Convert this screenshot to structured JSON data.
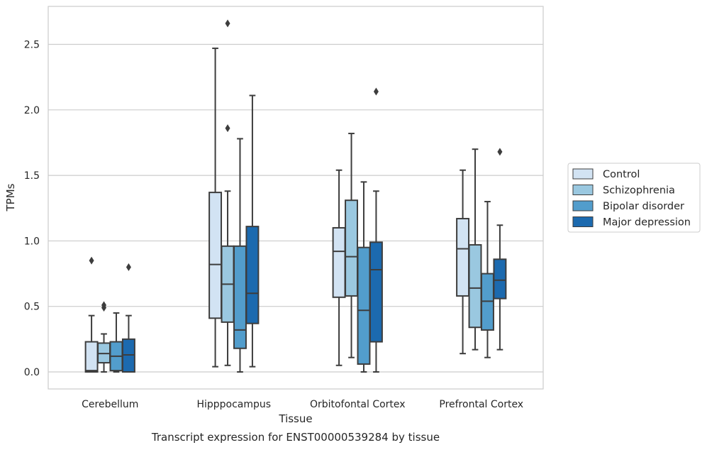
{
  "chart_data": {
    "type": "box",
    "title": "",
    "caption": "Transcript expression for ENST00000539284 by tissue",
    "xlabel": "Tissue",
    "ylabel": "TPMs",
    "ylim": [
      -0.13,
      2.79
    ],
    "yticks": [
      0.0,
      0.5,
      1.0,
      1.5,
      2.0,
      2.5
    ],
    "ytick_labels": [
      "0.0",
      "0.5",
      "1.0",
      "1.5",
      "2.0",
      "2.5"
    ],
    "grid": "horizontal",
    "legend_position": "right",
    "categories": [
      "Cerebellum",
      "Hipppocampus",
      "Orbitofontal Cortex",
      "Prefrontal Cortex"
    ],
    "series": [
      {
        "name": "Control",
        "color": "#d2e3f3",
        "boxes": [
          {
            "whisker_low": 0.0,
            "q1": 0.0,
            "median": 0.01,
            "q3": 0.23,
            "whisker_high": 0.43,
            "outliers": [
              0.85
            ]
          },
          {
            "whisker_low": 0.04,
            "q1": 0.41,
            "median": 0.82,
            "q3": 1.37,
            "whisker_high": 2.47,
            "outliers": []
          },
          {
            "whisker_low": 0.05,
            "q1": 0.57,
            "median": 0.92,
            "q3": 1.1,
            "whisker_high": 1.54,
            "outliers": []
          },
          {
            "whisker_low": 0.14,
            "q1": 0.58,
            "median": 0.94,
            "q3": 1.17,
            "whisker_high": 1.54,
            "outliers": []
          }
        ]
      },
      {
        "name": "Schizophrenia",
        "color": "#9ac8e0",
        "boxes": [
          {
            "whisker_low": 0.0,
            "q1": 0.07,
            "median": 0.14,
            "q3": 0.22,
            "whisker_high": 0.29,
            "outliers": [
              0.49,
              0.51
            ]
          },
          {
            "whisker_low": 0.05,
            "q1": 0.38,
            "median": 0.67,
            "q3": 0.96,
            "whisker_high": 1.38,
            "outliers": [
              1.86,
              2.66
            ]
          },
          {
            "whisker_low": 0.11,
            "q1": 0.58,
            "median": 0.88,
            "q3": 1.31,
            "whisker_high": 1.82,
            "outliers": []
          },
          {
            "whisker_low": 0.17,
            "q1": 0.34,
            "median": 0.64,
            "q3": 0.97,
            "whisker_high": 1.7,
            "outliers": []
          }
        ]
      },
      {
        "name": "Bipolar disorder",
        "color": "#529dcc",
        "boxes": [
          {
            "whisker_low": 0.0,
            "q1": 0.01,
            "median": 0.12,
            "q3": 0.23,
            "whisker_high": 0.45,
            "outliers": []
          },
          {
            "whisker_low": 0.0,
            "q1": 0.18,
            "median": 0.32,
            "q3": 0.96,
            "whisker_high": 1.78,
            "outliers": []
          },
          {
            "whisker_low": 0.0,
            "q1": 0.06,
            "median": 0.47,
            "q3": 0.95,
            "whisker_high": 1.45,
            "outliers": []
          },
          {
            "whisker_low": 0.11,
            "q1": 0.32,
            "median": 0.54,
            "q3": 0.75,
            "whisker_high": 1.3,
            "outliers": []
          }
        ]
      },
      {
        "name": "Major depression",
        "color": "#1c6aaf",
        "boxes": [
          {
            "whisker_low": 0.0,
            "q1": 0.0,
            "median": 0.13,
            "q3": 0.25,
            "whisker_high": 0.43,
            "outliers": [
              0.8
            ]
          },
          {
            "whisker_low": 0.04,
            "q1": 0.37,
            "median": 0.6,
            "q3": 1.11,
            "whisker_high": 2.11,
            "outliers": []
          },
          {
            "whisker_low": 0.0,
            "q1": 0.23,
            "median": 0.78,
            "q3": 0.99,
            "whisker_high": 1.38,
            "outliers": [
              2.14
            ]
          },
          {
            "whisker_low": 0.17,
            "q1": 0.56,
            "median": 0.7,
            "q3": 0.86,
            "whisker_high": 1.12,
            "outliers": [
              1.68
            ]
          }
        ]
      }
    ]
  }
}
